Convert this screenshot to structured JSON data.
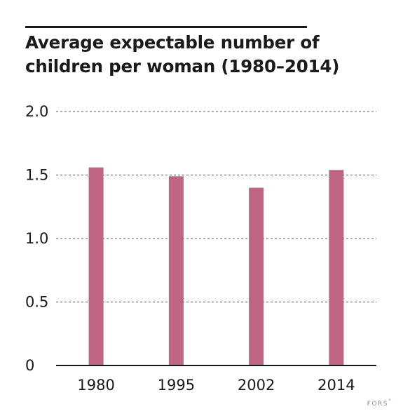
{
  "chart_data": {
    "type": "bar",
    "title_lines": [
      "Average expectable number of",
      "children per woman (1980–2014)"
    ],
    "categories": [
      "1980",
      "1995",
      "2002",
      "2014"
    ],
    "values": [
      1.56,
      1.49,
      1.4,
      1.54
    ],
    "ylim": [
      0,
      2.0
    ],
    "yticks": [
      0,
      0.5,
      1.0,
      1.5,
      2.0
    ],
    "ytick_labels": [
      "0",
      "0.5",
      "1.0",
      "1.5",
      "2.0"
    ],
    "grid": "dashed horizontal",
    "bar_color": "#bf6584",
    "xlabel": "",
    "ylabel": ""
  },
  "footer": {
    "brand": "FORS",
    "brand_dot": "°",
    "brand_dot_color": "#3a8fd0"
  }
}
